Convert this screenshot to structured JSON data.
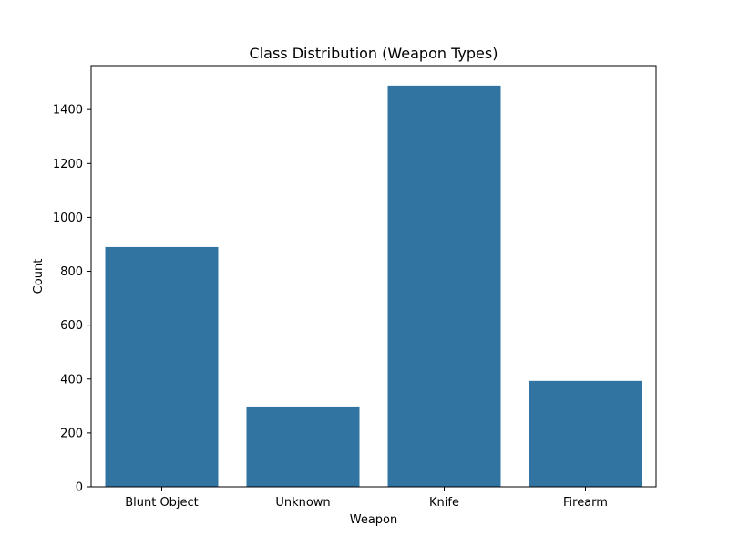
{
  "chart_data": {
    "type": "bar",
    "title": "Class Distribution (Weapon Types)",
    "xlabel": "Weapon",
    "ylabel": "Count",
    "categories": [
      "Blunt Object",
      "Unknown",
      "Knife",
      "Firearm"
    ],
    "values": [
      890,
      298,
      1489,
      393
    ],
    "ylim": [
      0,
      1563
    ],
    "yticks": [
      0,
      200,
      400,
      600,
      800,
      1000,
      1200,
      1400
    ],
    "grid": false,
    "bar_color": "#3274a1"
  }
}
